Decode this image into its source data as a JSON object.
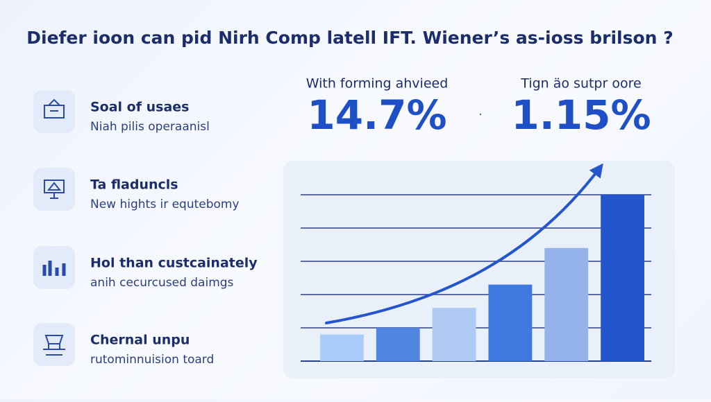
{
  "header": {
    "title": "Diefer ioon can pid Nirh Comp latell IFT. Wiener’s as-ioss brilson ?"
  },
  "features": [
    {
      "title": "Soal of usaes",
      "subtitle": "Niah pilis operaanisl"
    },
    {
      "title": "Ta fladuncls",
      "subtitle": "New hights ir equtebomy"
    },
    {
      "title": "Hol than custcainately",
      "subtitle": "anih cecurcused daimgs"
    },
    {
      "title": "Chernal unpu",
      "subtitle": "rutominnuision toard"
    }
  ],
  "stats": [
    {
      "label": "With forming ahvieed",
      "value": "14.7%"
    },
    {
      "label": "Tign äo sutpr oore",
      "value": "1.15%"
    }
  ],
  "chart_data": {
    "type": "bar",
    "categories": [
      null,
      null,
      null,
      null,
      null,
      null
    ],
    "values": [
      0.8,
      1.0,
      1.6,
      2.3,
      3.4,
      5.0
    ],
    "colors": [
      "#a9cdf8",
      "#4e86e0",
      "#afcbf3",
      "#3e79df",
      "#94b3eb",
      "#2356cc"
    ],
    "ylim": [
      0,
      5
    ],
    "gridlines": [
      0,
      1,
      2,
      3,
      4,
      5
    ],
    "trend_arrow": true
  }
}
